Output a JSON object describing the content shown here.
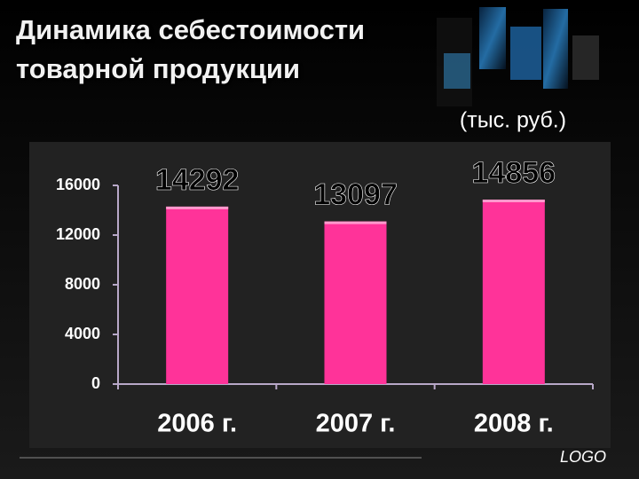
{
  "chart_data": {
    "type": "bar",
    "title": "Динамика себестоимости товарной продукции",
    "subtitle": "(тыс. руб.)",
    "categories": [
      "2006 г.",
      "2007 г.",
      "2008 г."
    ],
    "values": [
      14292,
      13097,
      14856
    ],
    "color": "#ff3399",
    "ylim": [
      0,
      16000
    ],
    "yticks": [
      0,
      4000,
      8000,
      12000,
      16000
    ],
    "grid": false
  },
  "logo": "LOGO"
}
